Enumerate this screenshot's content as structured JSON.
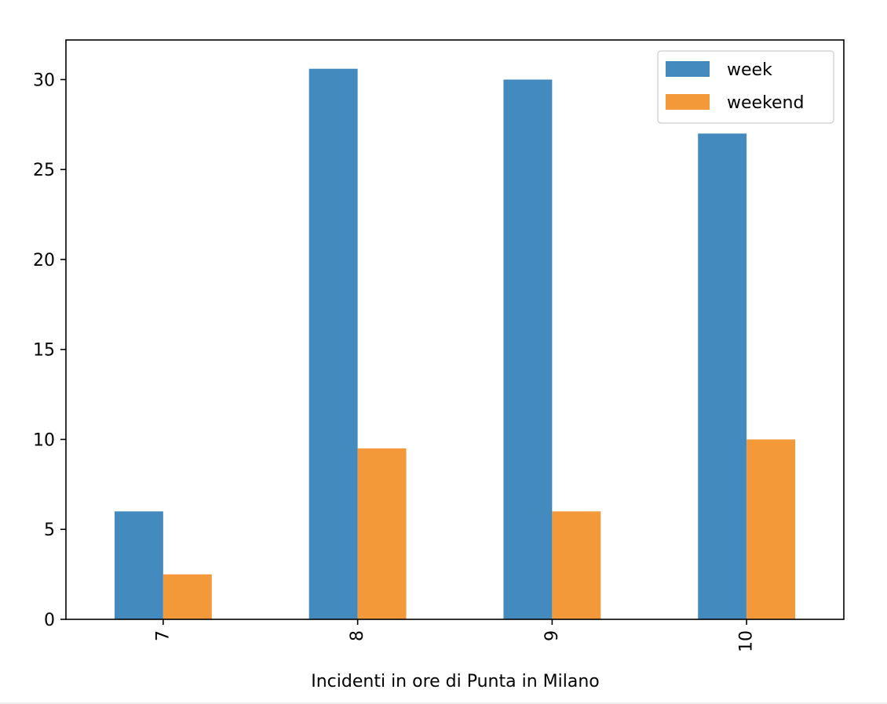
{
  "chart_data": {
    "type": "bar",
    "categories": [
      "7",
      "8",
      "9",
      "10"
    ],
    "series": [
      {
        "name": "week",
        "color": "#438bbf",
        "values": [
          6,
          30.6,
          30,
          27
        ]
      },
      {
        "name": "weekend",
        "color": "#f39939",
        "values": [
          2.5,
          9.5,
          6,
          10
        ]
      }
    ],
    "xlabel": "Incidenti in ore di Punta in Milano",
    "ylabel": "",
    "ylim": [
      0,
      32.2
    ],
    "yticks": [
      "0",
      "5",
      "10",
      "15",
      "20",
      "25",
      "30"
    ],
    "x_tick_rotation": "vertical",
    "legend_position": "top-right",
    "grid": false
  }
}
